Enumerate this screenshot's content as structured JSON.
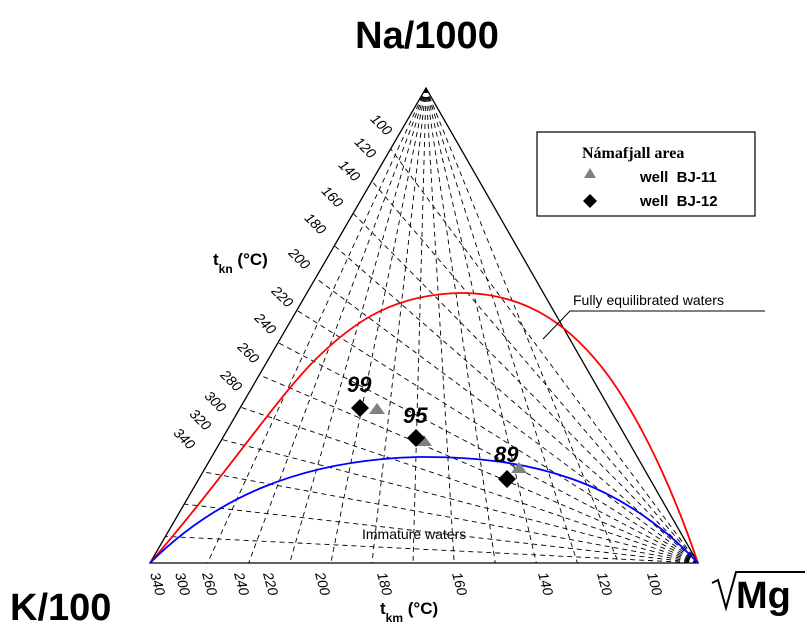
{
  "title": "Na/1000",
  "vertices": {
    "left": "K/100",
    "right": "Mg"
  },
  "axis_kn": {
    "label": "t",
    "sub": "kn",
    "unit": " (°C)",
    "ticks": [
      "100",
      "120",
      "140",
      "160",
      "180",
      "200",
      "220",
      "240",
      "260",
      "280",
      "300",
      "320",
      "340"
    ]
  },
  "axis_km": {
    "label": "t",
    "sub": "km",
    "unit": " (°C)",
    "ticks": [
      "100",
      "120",
      "140",
      "160",
      "180",
      "200",
      "220",
      "240",
      "260",
      "300",
      "340"
    ]
  },
  "legend": {
    "title": "Námafjall area",
    "items": [
      {
        "symbol": "triangle",
        "label": "well  BJ-11",
        "color": "#808080"
      },
      {
        "symbol": "diamond",
        "label": "well  BJ-12",
        "color": "#000000"
      }
    ]
  },
  "curves": [
    {
      "name": "Fully equilibrated waters",
      "color": "#ff0000"
    },
    {
      "name": "Immature waters",
      "color": "#0000ff"
    }
  ],
  "points": [
    {
      "label": "99"
    },
    {
      "label": "95"
    },
    {
      "label": "89"
    }
  ],
  "colors": {
    "equilibrium": "#ff0000",
    "partial": "#0000ff",
    "lines": "#000000"
  }
}
